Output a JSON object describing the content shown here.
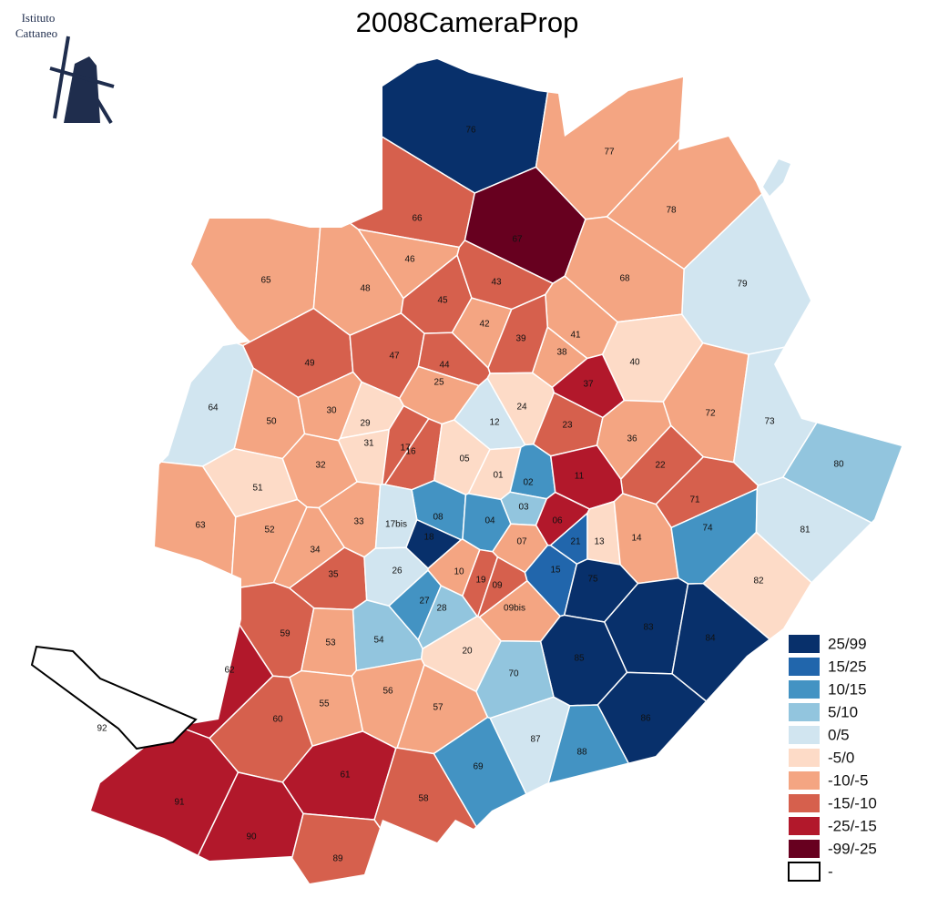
{
  "header": {
    "title": "2008CameraProp",
    "logo": [
      "Istituto",
      "Cattaneo"
    ]
  },
  "legend": [
    {
      "label": "25/99",
      "color": "#08306b"
    },
    {
      "label": "15/25",
      "color": "#2166ac"
    },
    {
      "label": "10/15",
      "color": "#4393c3"
    },
    {
      "label": "5/10",
      "color": "#92c5de"
    },
    {
      "label": "0/5",
      "color": "#d1e5f0"
    },
    {
      "label": "-5/0",
      "color": "#fddbc7"
    },
    {
      "label": "-10/-5",
      "color": "#f4a582"
    },
    {
      "label": "-15/-10",
      "color": "#d6604d"
    },
    {
      "label": "-25/-15",
      "color": "#b2182b"
    },
    {
      "label": "-99/-25",
      "color": "#67001f"
    },
    {
      "label": "-",
      "color": "#ffffff"
    }
  ],
  "regions": [
    {
      "label": "76",
      "bin": 0
    },
    {
      "label": "77",
      "bin": 6
    },
    {
      "label": "78",
      "bin": 6
    },
    {
      "label": "79",
      "bin": 4
    },
    {
      "label": "66",
      "bin": 7
    },
    {
      "label": "67",
      "bin": 9
    },
    {
      "label": "68",
      "bin": 6
    },
    {
      "label": "65",
      "bin": 6
    },
    {
      "label": "46",
      "bin": 6
    },
    {
      "label": "48",
      "bin": 6
    },
    {
      "label": "45",
      "bin": 7
    },
    {
      "label": "43",
      "bin": 7
    },
    {
      "label": "42",
      "bin": 6
    },
    {
      "label": "41",
      "bin": 6
    },
    {
      "label": "38",
      "bin": 6
    },
    {
      "label": "39",
      "bin": 7
    },
    {
      "label": "37",
      "bin": 8
    },
    {
      "label": "40",
      "bin": 5
    },
    {
      "label": "49",
      "bin": 7
    },
    {
      "label": "47",
      "bin": 7
    },
    {
      "label": "44",
      "bin": 7
    },
    {
      "label": "25",
      "bin": 6
    },
    {
      "label": "64",
      "bin": 4
    },
    {
      "label": "50",
      "bin": 6
    },
    {
      "label": "30",
      "bin": 6
    },
    {
      "label": "29",
      "bin": 5
    },
    {
      "label": "31",
      "bin": 5
    },
    {
      "label": "17",
      "bin": 7
    },
    {
      "label": "16",
      "bin": 7
    },
    {
      "label": "24",
      "bin": 5
    },
    {
      "label": "12",
      "bin": 4
    },
    {
      "label": "23",
      "bin": 7
    },
    {
      "label": "36",
      "bin": 6
    },
    {
      "label": "72",
      "bin": 6
    },
    {
      "label": "73",
      "bin": 4
    },
    {
      "label": "80",
      "bin": 3
    },
    {
      "label": "05",
      "bin": 5
    },
    {
      "label": "01",
      "bin": 5
    },
    {
      "label": "02",
      "bin": 2
    },
    {
      "label": "22",
      "bin": 7
    },
    {
      "label": "11",
      "bin": 8
    },
    {
      "label": "71",
      "bin": 7
    },
    {
      "label": "51",
      "bin": 5
    },
    {
      "label": "32",
      "bin": 6
    },
    {
      "label": "63",
      "bin": 6
    },
    {
      "label": "52",
      "bin": 6
    },
    {
      "label": "33",
      "bin": 6
    },
    {
      "label": "08",
      "bin": 2
    },
    {
      "label": "17bis",
      "bin": 4
    },
    {
      "label": "03",
      "bin": 3
    },
    {
      "label": "04",
      "bin": 2
    },
    {
      "label": "06",
      "bin": 8
    },
    {
      "label": "07",
      "bin": 6
    },
    {
      "label": "18",
      "bin": 0
    },
    {
      "label": "21",
      "bin": 1
    },
    {
      "label": "13",
      "bin": 5
    },
    {
      "label": "14",
      "bin": 6
    },
    {
      "label": "74",
      "bin": 2
    },
    {
      "label": "81",
      "bin": 4
    },
    {
      "label": "34",
      "bin": 6
    },
    {
      "label": "35",
      "bin": 7
    },
    {
      "label": "26",
      "bin": 4
    },
    {
      "label": "10",
      "bin": 6
    },
    {
      "label": "19",
      "bin": 7
    },
    {
      "label": "09",
      "bin": 7
    },
    {
      "label": "15",
      "bin": 1
    },
    {
      "label": "75",
      "bin": 0
    },
    {
      "label": "82",
      "bin": 5
    },
    {
      "label": "27",
      "bin": 2
    },
    {
      "label": "28",
      "bin": 3
    },
    {
      "label": "09bis",
      "bin": 6
    },
    {
      "label": "59",
      "bin": 7
    },
    {
      "label": "62",
      "bin": 8
    },
    {
      "label": "54",
      "bin": 3
    },
    {
      "label": "53",
      "bin": 6
    },
    {
      "label": "20",
      "bin": 5
    },
    {
      "label": "83",
      "bin": 0
    },
    {
      "label": "84",
      "bin": 0
    },
    {
      "label": "85",
      "bin": 0
    },
    {
      "label": "70",
      "bin": 3
    },
    {
      "label": "55",
      "bin": 6
    },
    {
      "label": "56",
      "bin": 6
    },
    {
      "label": "57",
      "bin": 6
    },
    {
      "label": "60",
      "bin": 7
    },
    {
      "label": "86",
      "bin": 0
    },
    {
      "label": "87",
      "bin": 4
    },
    {
      "label": "88",
      "bin": 2
    },
    {
      "label": "69",
      "bin": 2
    },
    {
      "label": "61",
      "bin": 8
    },
    {
      "label": "58",
      "bin": 7
    },
    {
      "label": "91",
      "bin": 8
    },
    {
      "label": "90",
      "bin": 8
    },
    {
      "label": "89",
      "bin": 7
    },
    {
      "label": "92",
      "bin": 10
    }
  ]
}
